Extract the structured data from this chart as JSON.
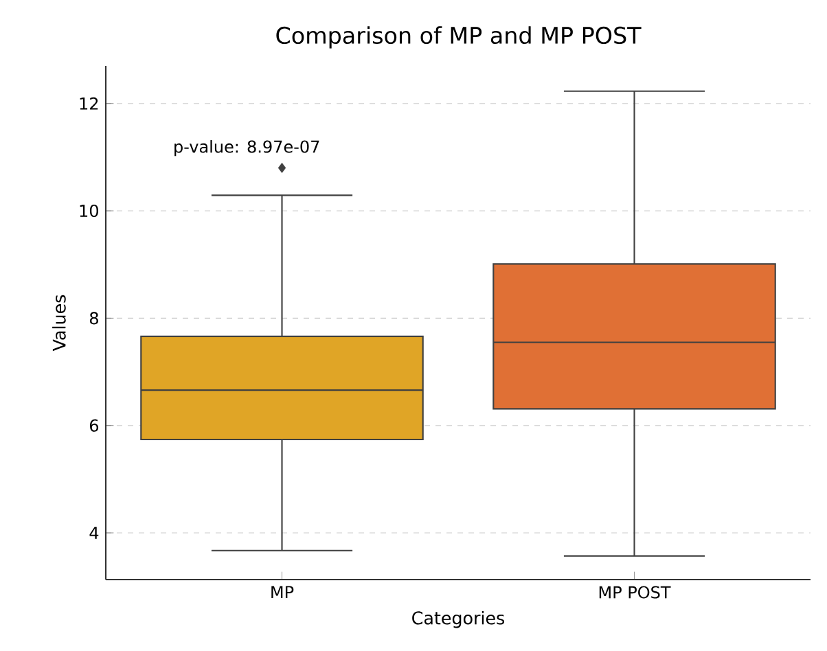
{
  "chart_data": {
    "type": "box",
    "title": "Comparison of MP and MP POST",
    "xlabel": "Categories",
    "ylabel": "Values",
    "categories": [
      "MP",
      "MP POST"
    ],
    "colors": [
      "#e0a526",
      "#e07035"
    ],
    "boxes": [
      {
        "low": 3.67,
        "q1": 5.74,
        "median": 6.66,
        "q3": 7.66,
        "high": 10.29,
        "outliers": [
          10.8
        ]
      },
      {
        "low": 3.57,
        "q1": 6.31,
        "median": 7.55,
        "q3": 9.01,
        "high": 12.23
      }
    ],
    "ylim": [
      3.13,
      12.7
    ],
    "yticks": [
      4,
      6,
      8,
      10,
      12
    ],
    "grid": "y",
    "marker": "diamond",
    "annotations": [
      "p-value: 8.97e-07"
    ]
  }
}
